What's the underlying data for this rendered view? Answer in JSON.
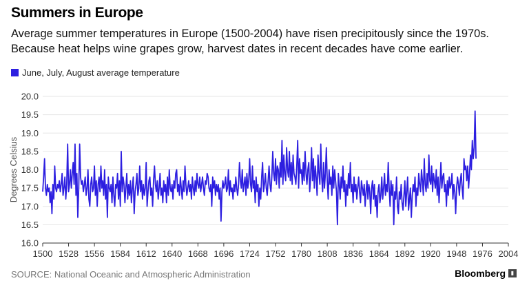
{
  "title": "Summers in Europe",
  "subtitle": "Average summer temperatures in Europe (1500-2004) have risen precipitously since the 1970s. Because heat helps wine grapes grow, harvest dates in recent decades have come earlier.",
  "source": "SOURCE: National Oceanic and Atmospheric Administration",
  "brand": "Bloomberg",
  "colors": {
    "series": "#2d1fe0",
    "grid": "#e6e6e6",
    "axis": "#333333"
  },
  "chart_data": {
    "type": "line",
    "title": "Summers in Europe",
    "xlabel": "",
    "ylabel": "Degrees Celsius",
    "xlim": [
      1500,
      2004
    ],
    "ylim": [
      16.0,
      20.0
    ],
    "grid": true,
    "legend_position": "top-left",
    "x_ticks": [
      1500,
      1528,
      1556,
      1584,
      1612,
      1640,
      1668,
      1696,
      1724,
      1752,
      1780,
      1808,
      1836,
      1864,
      1892,
      1920,
      1948,
      1976,
      2004
    ],
    "y_ticks": [
      "16.0",
      "16.5",
      "17.0",
      "17.5",
      "18.0",
      "18.5",
      "19.0",
      "19.5",
      "20.0"
    ],
    "series": [
      {
        "name": "June, July, August average temperature",
        "x_start": 1500,
        "x_step": 1,
        "values": [
          17.4,
          17.8,
          18.3,
          17.5,
          17.3,
          17.6,
          17.4,
          17.5,
          17.1,
          17.4,
          16.8,
          17.6,
          17.2,
          18.1,
          17.5,
          17.4,
          17.6,
          17.5,
          17.7,
          17.4,
          17.6,
          17.9,
          17.3,
          17.5,
          17.8,
          17.2,
          17.6,
          18.7,
          17.4,
          17.6,
          18.0,
          17.5,
          17.9,
          18.2,
          17.6,
          18.7,
          17.3,
          17.9,
          16.7,
          17.5,
          18.7,
          17.8,
          17.6,
          17.7,
          17.4,
          17.6,
          17.8,
          17.3,
          17.5,
          18.0,
          17.2,
          17.0,
          17.6,
          17.8,
          17.4,
          17.5,
          18.1,
          17.3,
          17.7,
          17.0,
          17.6,
          17.8,
          17.4,
          18.1,
          17.5,
          17.7,
          17.3,
          18.0,
          17.2,
          17.6,
          16.7,
          17.8,
          17.5,
          17.4,
          17.6,
          17.1,
          17.8,
          17.3,
          17.0,
          17.6,
          17.5,
          17.9,
          17.2,
          17.7,
          17.0,
          18.5,
          17.4,
          17.8,
          17.6,
          17.1,
          17.5,
          17.9,
          17.2,
          17.6,
          17.3,
          17.7,
          17.1,
          17.5,
          17.8,
          16.8,
          17.4,
          17.6,
          17.9,
          17.3,
          17.5,
          18.1,
          17.4,
          17.7,
          17.2,
          17.6,
          17.3,
          17.5,
          18.2,
          17.0,
          17.4,
          17.7,
          17.8,
          17.3,
          17.5,
          17.0,
          17.7,
          18.1,
          17.6,
          17.4,
          17.7,
          17.2,
          17.5,
          17.9,
          17.3,
          17.5,
          17.1,
          17.7,
          17.4,
          17.6,
          17.1,
          17.8,
          17.3,
          18.0,
          17.5,
          17.4,
          17.6,
          17.2,
          17.7,
          17.5,
          17.9,
          18.0,
          17.4,
          17.6,
          17.3,
          17.8,
          17.5,
          17.2,
          17.7,
          17.4,
          18.1,
          17.6,
          17.3,
          17.5,
          17.7,
          17.4,
          17.6,
          17.2,
          17.8,
          17.5,
          17.3,
          17.7,
          17.4,
          17.9,
          17.6,
          17.5,
          17.8,
          17.4,
          17.6,
          17.8,
          17.5,
          17.3,
          17.7,
          17.6,
          17.9,
          17.8,
          17.5,
          17.4,
          17.6,
          17.0,
          17.8,
          17.5,
          17.7,
          17.3,
          17.6,
          17.4,
          17.6,
          17.2,
          17.5,
          16.6,
          17.4,
          17.7,
          17.5,
          17.6,
          17.8,
          17.4,
          17.5,
          18.0,
          17.3,
          17.7,
          17.4,
          17.5,
          17.2,
          17.6,
          17.4,
          17.8,
          17.5,
          17.3,
          17.6,
          18.2,
          17.7,
          17.5,
          18.0,
          17.4,
          17.6,
          17.8,
          17.3,
          17.9,
          17.5,
          17.7,
          18.3,
          17.6,
          17.4,
          18.1,
          17.5,
          17.7,
          17.1,
          17.8,
          17.4,
          17.6,
          17.0,
          17.5,
          17.2,
          17.8,
          18.2,
          17.4,
          17.6,
          17.9,
          17.5,
          17.3,
          17.7,
          18.1,
          17.6,
          17.4,
          17.8,
          18.5,
          17.9,
          17.7,
          18.3,
          17.6,
          18.1,
          18.0,
          17.5,
          18.2,
          17.8,
          18.8,
          17.6,
          18.4,
          17.9,
          17.7,
          18.6,
          18.0,
          17.8,
          18.5,
          17.7,
          18.2,
          17.6,
          18.4,
          17.9,
          17.8,
          17.6,
          18.1,
          18.8,
          17.5,
          18.3,
          17.9,
          18.0,
          17.6,
          18.2,
          17.7,
          18.5,
          17.9,
          17.6,
          18.0,
          18.2,
          17.4,
          17.8,
          18.6,
          17.7,
          18.3,
          17.5,
          18.1,
          17.8,
          17.3,
          18.4,
          17.9,
          17.6,
          18.7,
          17.8,
          17.4,
          18.2,
          17.5,
          17.9,
          18.6,
          17.7,
          17.2,
          18.0,
          17.6,
          17.8,
          17.3,
          18.1,
          17.5,
          18.0,
          17.7,
          17.4,
          16.5,
          17.9,
          17.6,
          17.2,
          17.8,
          17.5,
          18.1,
          17.4,
          17.7,
          17.0,
          17.6,
          17.3,
          17.9,
          17.5,
          18.2,
          17.4,
          17.6,
          17.1,
          17.8,
          17.4,
          17.6,
          17.2,
          17.5,
          17.8,
          17.4,
          17.1,
          17.7,
          17.5,
          17.3,
          17.6,
          17.0,
          17.4,
          17.7,
          17.2,
          17.6,
          17.4,
          16.8,
          17.5,
          17.7,
          17.2,
          17.6,
          17.0,
          17.3,
          16.7,
          17.4,
          17.6,
          17.1,
          17.3,
          17.8,
          17.2,
          17.5,
          17.9,
          17.3,
          17.6,
          17.4,
          18.2,
          17.5,
          17.0,
          17.7,
          17.3,
          17.6,
          16.5,
          17.4,
          17.2,
          17.8,
          17.0,
          16.8,
          17.4,
          17.2,
          17.6,
          17.1,
          16.9,
          17.3,
          17.7,
          17.0,
          17.4,
          17.8,
          16.9,
          17.2,
          17.5,
          16.7,
          17.3,
          17.6,
          17.4,
          17.8,
          17.0,
          17.5,
          17.3,
          17.9,
          17.6,
          17.4,
          18.0,
          17.7,
          17.3,
          18.3,
          17.6,
          17.4,
          17.9,
          17.5,
          18.4,
          17.7,
          17.6,
          18.1,
          17.4,
          17.9,
          17.7,
          17.5,
          18.0,
          17.3,
          17.8,
          17.1,
          17.6,
          18.2,
          17.5,
          17.8,
          17.9,
          17.4,
          17.6,
          17.0,
          17.7,
          17.3,
          17.8,
          17.5,
          17.6,
          17.9,
          17.2,
          17.6,
          17.4,
          16.8,
          17.5,
          17.8,
          17.6,
          17.3,
          17.7,
          17.9,
          17.5,
          17.2,
          18.3,
          18.0,
          18.1,
          17.7,
          18.1,
          17.5,
          17.9,
          18.4,
          18.0,
          18.8,
          18.3,
          18.6,
          19.6,
          18.3
        ]
      }
    ]
  }
}
